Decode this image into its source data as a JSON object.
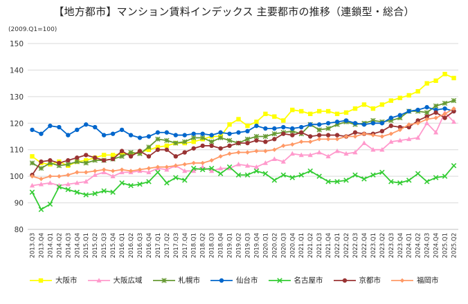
{
  "chart_data": {
    "type": "line",
    "title": "【地方都市】マンション賃料インデックス 主要都市の推移（連鎖型・総合）",
    "subtitle": "(2009.Q1=100)",
    "xlabel": "",
    "ylabel": "",
    "ylim": [
      80,
      150
    ],
    "yticks": [
      80,
      90,
      100,
      110,
      120,
      130,
      140,
      150
    ],
    "grid": true,
    "legend_position": "bottom",
    "x": [
      "2013.Q3",
      "2013.Q4",
      "2014.Q1",
      "2014.Q2",
      "2014.Q3",
      "2014.Q4",
      "2015.Q1",
      "2015.Q2",
      "2015.Q3",
      "2015.Q4",
      "2016.Q1",
      "2016.Q2",
      "2016.Q3",
      "2016.Q4",
      "2017.Q1",
      "2017.Q2",
      "2017.Q3",
      "2017.Q4",
      "2018.Q1",
      "2018.Q2",
      "2018.Q3",
      "2018.Q4",
      "2019.Q1",
      "2019.Q2",
      "2019.Q3",
      "2019.Q4",
      "2020.Q1",
      "2020.Q2",
      "2020.Q3",
      "2020.Q4",
      "2021.Q1",
      "2021.Q2",
      "2021.Q3",
      "2021.Q4",
      "2022.Q1",
      "2022.Q2",
      "2022.Q3",
      "2022.Q4",
      "2023.Q1",
      "2023.Q2",
      "2023.Q3",
      "2023.Q4",
      "2024.Q1",
      "2024.Q2",
      "2024.Q3",
      "2024.Q4",
      "2025.Q1",
      "2025.Q2"
    ],
    "series": [
      {
        "name": "大阪市",
        "color": "#ffff00",
        "marker": "square",
        "values": [
          107.5,
          105.0,
          104.5,
          105.5,
          104.0,
          105.5,
          106.0,
          107.0,
          108.0,
          108.0,
          108.5,
          108.5,
          109.0,
          110.0,
          111.0,
          111.5,
          112.5,
          112.5,
          113.0,
          114.0,
          115.0,
          115.0,
          119.5,
          121.5,
          119.0,
          120.5,
          123.5,
          122.5,
          121.0,
          125.0,
          124.5,
          123.5,
          124.5,
          124.5,
          123.5,
          124.0,
          125.5,
          127.0,
          125.5,
          127.0,
          128.5,
          129.5,
          130.5,
          132.0,
          135.0,
          136.0,
          138.5,
          137.0
        ]
      },
      {
        "name": "大阪広域",
        "color": "#ff99cc",
        "marker": "triangle",
        "values": [
          96.5,
          97.0,
          97.5,
          96.5,
          97.0,
          97.5,
          98.0,
          100.5,
          101.5,
          100.0,
          101.5,
          101.5,
          102.0,
          101.5,
          103.0,
          102.5,
          104.0,
          102.0,
          102.0,
          103.5,
          102.0,
          103.0,
          103.0,
          104.5,
          104.0,
          103.5,
          105.0,
          106.5,
          105.5,
          108.5,
          108.0,
          108.0,
          109.0,
          107.5,
          109.5,
          108.5,
          109.0,
          112.5,
          110.0,
          110.0,
          113.0,
          113.5,
          114.0,
          114.5,
          120.0,
          116.5,
          124.0,
          120.5
        ]
      },
      {
        "name": "札幌市",
        "color": "#669933",
        "marker": "cross",
        "values": [
          105.0,
          103.0,
          105.0,
          104.0,
          104.5,
          105.5,
          105.0,
          106.0,
          106.0,
          106.5,
          107.5,
          109.0,
          108.5,
          111.0,
          114.0,
          113.5,
          112.5,
          113.0,
          114.5,
          114.5,
          113.0,
          114.5,
          113.5,
          112.5,
          114.0,
          115.0,
          115.0,
          116.0,
          116.5,
          117.0,
          116.0,
          119.5,
          117.5,
          118.0,
          119.5,
          120.5,
          119.5,
          120.0,
          121.0,
          120.5,
          121.0,
          122.0,
          124.5,
          124.5,
          124.0,
          126.5,
          127.5,
          128.5
        ]
      },
      {
        "name": "仙台市",
        "color": "#0066cc",
        "marker": "circle",
        "values": [
          117.5,
          116.0,
          119.0,
          118.5,
          115.5,
          117.5,
          119.5,
          118.5,
          115.5,
          116.0,
          117.5,
          115.5,
          114.5,
          115.0,
          116.5,
          116.5,
          115.5,
          115.5,
          116.0,
          116.0,
          115.5,
          116.5,
          116.0,
          116.5,
          117.0,
          119.0,
          118.0,
          118.0,
          118.5,
          118.0,
          118.5,
          119.5,
          119.5,
          120.0,
          120.5,
          121.0,
          120.0,
          119.5,
          120.0,
          120.0,
          122.0,
          123.0,
          124.5,
          125.0,
          126.0,
          125.0,
          125.5,
          124.5
        ]
      },
      {
        "name": "名古屋市",
        "color": "#33cc33",
        "marker": "x",
        "values": [
          94.0,
          87.5,
          89.5,
          96.0,
          95.0,
          94.0,
          93.0,
          93.5,
          94.5,
          94.0,
          97.5,
          96.5,
          97.0,
          98.0,
          101.5,
          97.5,
          99.5,
          98.5,
          103.0,
          102.5,
          103.0,
          101.0,
          103.5,
          100.5,
          100.5,
          102.0,
          101.0,
          98.5,
          100.5,
          99.5,
          100.5,
          102.0,
          100.0,
          98.0,
          98.0,
          98.5,
          100.5,
          99.0,
          100.5,
          101.5,
          98.0,
          97.5,
          98.5,
          101.0,
          98.0,
          99.5,
          100.0,
          104.0
        ]
      },
      {
        "name": "京都市",
        "color": "#993333",
        "marker": "circle",
        "values": [
          100.5,
          105.5,
          106.0,
          105.0,
          106.0,
          107.0,
          108.0,
          107.0,
          106.0,
          106.5,
          109.5,
          107.5,
          109.5,
          107.5,
          110.0,
          110.0,
          107.5,
          109.0,
          110.5,
          111.5,
          111.5,
          110.5,
          111.5,
          112.5,
          112.5,
          113.5,
          113.0,
          114.0,
          116.0,
          115.5,
          116.5,
          115.0,
          115.5,
          115.5,
          115.5,
          115.0,
          116.5,
          116.0,
          116.0,
          117.0,
          119.0,
          118.5,
          118.5,
          121.0,
          122.5,
          124.0,
          122.0,
          124.5
        ]
      },
      {
        "name": "福岡市",
        "color": "#ff9966",
        "marker": "diamond",
        "values": [
          100.0,
          99.0,
          100.0,
          100.0,
          100.5,
          101.5,
          101.5,
          102.0,
          102.5,
          102.0,
          102.5,
          102.0,
          102.5,
          103.0,
          103.5,
          103.5,
          104.0,
          104.5,
          105.0,
          105.0,
          106.0,
          107.5,
          108.5,
          109.0,
          109.0,
          109.5,
          109.5,
          110.0,
          111.5,
          112.0,
          113.0,
          113.0,
          114.0,
          114.0,
          114.0,
          115.0,
          115.0,
          116.0,
          115.5,
          115.0,
          116.0,
          117.5,
          119.5,
          120.0,
          121.5,
          122.0,
          123.5,
          125.5
        ]
      }
    ]
  }
}
